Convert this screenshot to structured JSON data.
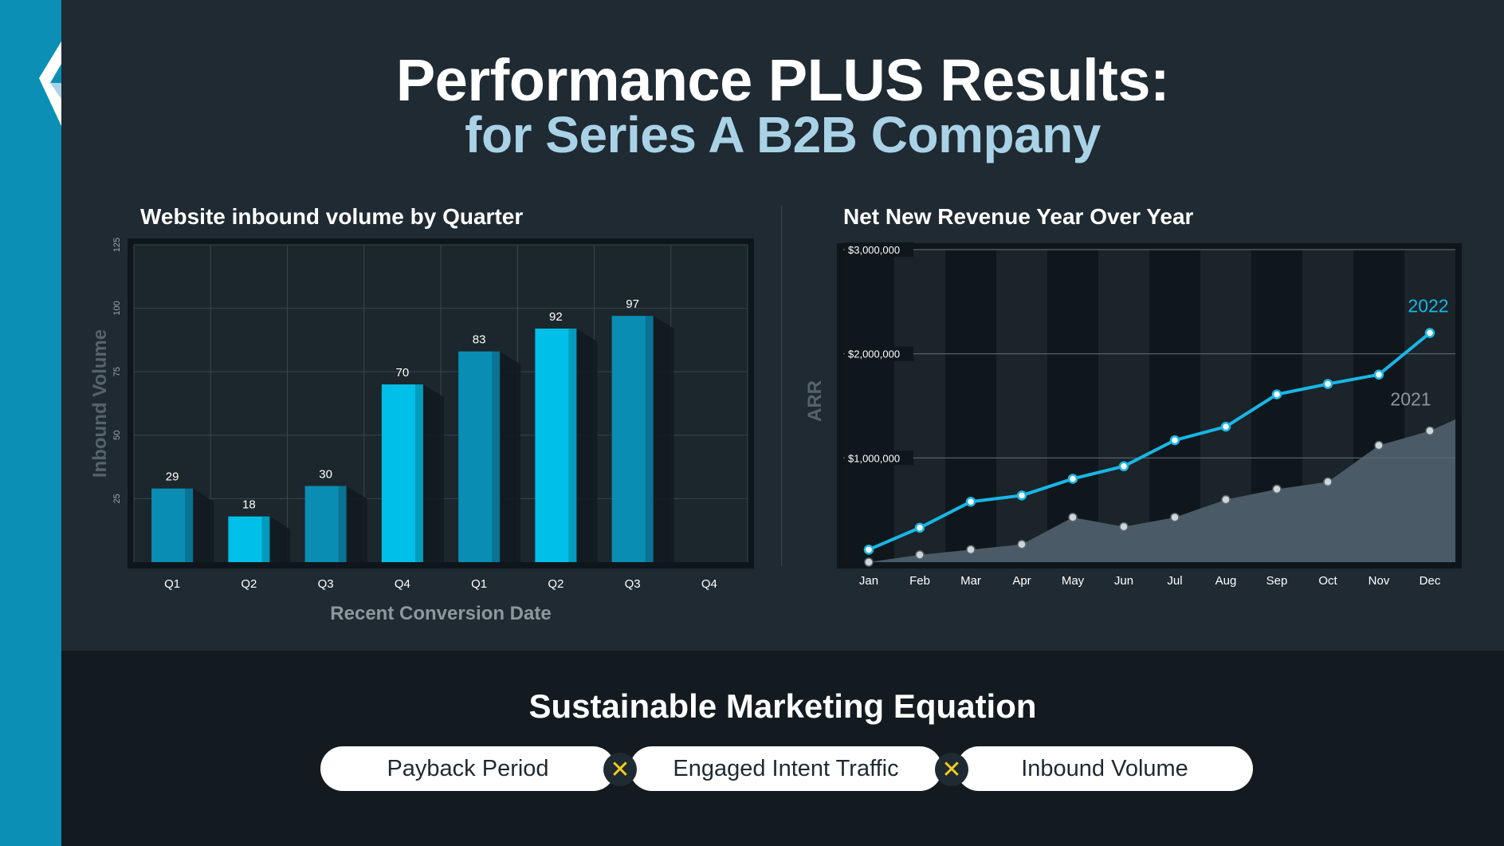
{
  "header": {
    "title_line1": "Performance PLUS Results:",
    "title_line2": "for Series A B2B Company"
  },
  "colors": {
    "sidebar": "#0b8fb5",
    "bar_dark": "#0a8db3",
    "bar_light": "#00bfe8",
    "line_2022": "#19b6e6",
    "area_2021": "#4a5a66",
    "op_symbol": "#f2cc1f"
  },
  "chart_data": [
    {
      "type": "bar",
      "title": "Website inbound volume by Quarter",
      "xlabel": "Recent Conversion Date",
      "ylabel": "Inbound Volume",
      "ylim": [
        0,
        125
      ],
      "yticks": [
        25,
        50,
        75,
        100,
        125
      ],
      "categories": [
        "Q1",
        "Q2",
        "Q3",
        "Q4",
        "Q1",
        "Q2",
        "Q3",
        "Q4"
      ],
      "values": [
        29,
        18,
        30,
        70,
        83,
        92,
        97,
        null
      ],
      "value_labels": [
        "29",
        "18",
        "30",
        "70",
        "83",
        "92",
        "97",
        ""
      ],
      "grid": true
    },
    {
      "type": "line",
      "title": "Net New Revenue Year Over Year",
      "ylabel": "ARR",
      "ylim": [
        0,
        3000000
      ],
      "yticks": [
        1000000,
        2000000,
        3000000
      ],
      "ytick_labels": [
        "$1,000,000",
        "$2,000,000",
        "$3,000,000"
      ],
      "x": [
        "Jan",
        "Feb",
        "Mar",
        "Apr",
        "May",
        "Jun",
        "Jul",
        "Aug",
        "Sep",
        "Oct",
        "Nov",
        "Dec"
      ],
      "series": [
        {
          "name": "2022",
          "values": [
            120000,
            330000,
            580000,
            640000,
            800000,
            920000,
            1170000,
            1300000,
            1610000,
            1710000,
            1800000,
            2200000
          ]
        },
        {
          "name": "2021",
          "values": [
            0,
            70000,
            120000,
            170000,
            430000,
            340000,
            430000,
            600000,
            700000,
            770000,
            1120000,
            1260000
          ]
        }
      ]
    }
  ],
  "equation": {
    "title": "Sustainable Marketing Equation",
    "terms": [
      "Payback Period",
      "Engaged Intent Traffic",
      "Inbound Volume"
    ],
    "operator": "✕"
  }
}
